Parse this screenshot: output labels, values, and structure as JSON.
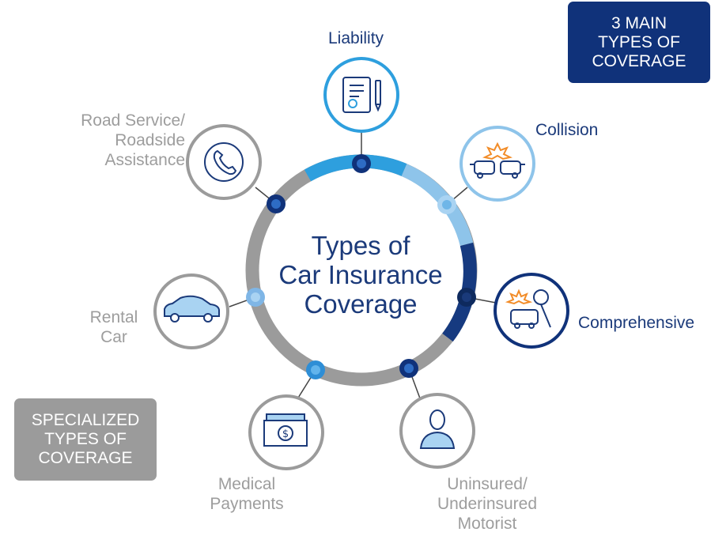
{
  "center_title": [
    "Types of",
    "Car Insurance",
    "Coverage"
  ],
  "main_box": [
    "3 MAIN",
    "TYPES OF",
    "COVERAGE"
  ],
  "special_box": [
    "SPECIALIZED",
    "TYPES OF",
    "COVERAGE"
  ],
  "colors": {
    "navy": "#10327a",
    "title_navy": "#1b3a7a",
    "blue": "#2e9fde",
    "light_blue": "#8ec4ea",
    "grey": "#9b9b9b",
    "dark_ring": "#163a80"
  },
  "coverages": [
    {
      "key": "liability",
      "lines": [
        "Liability"
      ],
      "group": "main",
      "icon": "contract-icon"
    },
    {
      "key": "collision",
      "lines": [
        "Collision"
      ],
      "group": "main",
      "icon": "car-collision-icon"
    },
    {
      "key": "comprehensive",
      "lines": [
        "Comprehensive"
      ],
      "group": "main",
      "icon": "car-tree-icon"
    },
    {
      "key": "uninsured",
      "lines": [
        "Uninsured/",
        "Underinsured",
        "Motorist"
      ],
      "group": "specialized",
      "icon": "person-icon"
    },
    {
      "key": "medical",
      "lines": [
        "Medical",
        "Payments"
      ],
      "group": "specialized",
      "icon": "money-icon"
    },
    {
      "key": "rental",
      "lines": [
        "Rental",
        "Car"
      ],
      "group": "specialized",
      "icon": "car-icon"
    },
    {
      "key": "road-service",
      "lines": [
        "Road Service/",
        "Roadside",
        "Assistance"
      ],
      "group": "specialized",
      "icon": "phone-icon"
    }
  ]
}
